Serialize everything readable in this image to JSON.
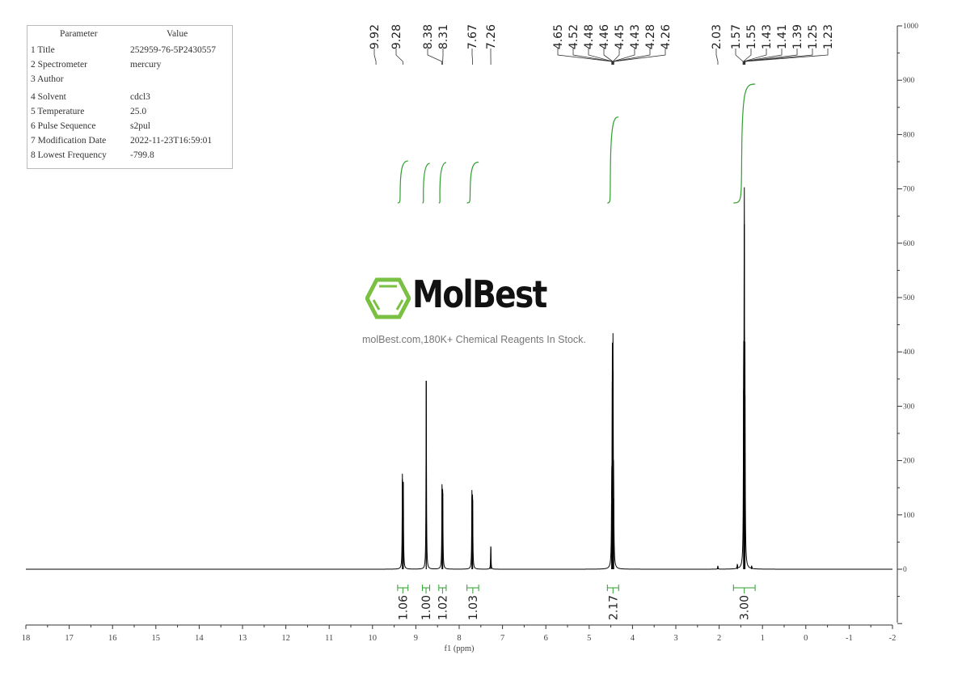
{
  "parameters": {
    "header": {
      "param": "Parameter",
      "value": "Value"
    },
    "rows": [
      {
        "k": "1 Title",
        "v": "252959-76-5P2430557"
      },
      {
        "k": "2 Spectrometer",
        "v": "mercury"
      },
      {
        "k": "3 Author",
        "v": ""
      },
      {
        "k": "4 Solvent",
        "v": "cdcl3"
      },
      {
        "k": "5 Temperature",
        "v": "25.0"
      },
      {
        "k": "6 Pulse Sequence",
        "v": "s2pul"
      },
      {
        "k": "7 Modification Date",
        "v": "2022-11-23T16:59:01"
      },
      {
        "k": "8 Lowest Frequency",
        "v": "-799.8"
      }
    ]
  },
  "watermark": {
    "brand": "MolBest",
    "tagline": "molBest.com,180K+ Chemical Reagents In Stock.",
    "color": "#7ac143"
  },
  "chart_data": {
    "type": "line",
    "xlabel": "f1 (ppm)",
    "xlim": [
      18,
      -2
    ],
    "ylim": [
      -100,
      1000
    ],
    "x_ticks": [
      "18",
      "17",
      "16",
      "15",
      "14",
      "13",
      "12",
      "11",
      "10",
      "9",
      "8",
      "7",
      "6",
      "5",
      "4",
      "3",
      "2",
      "1",
      "0",
      "-1",
      "-2"
    ],
    "y_ticks": [
      "0",
      "100",
      "200",
      "300",
      "400",
      "500",
      "600",
      "700",
      "800",
      "900",
      "1000"
    ],
    "peaks": [
      {
        "ppm": 9.31,
        "intensity": 165
      },
      {
        "ppm": 9.29,
        "intensity": 160
      },
      {
        "ppm": 8.76,
        "intensity": 347
      },
      {
        "ppm": 8.395,
        "intensity": 148
      },
      {
        "ppm": 8.38,
        "intensity": 140
      },
      {
        "ppm": 7.705,
        "intensity": 135
      },
      {
        "ppm": 7.69,
        "intensity": 128
      },
      {
        "ppm": 7.27,
        "intensity": 42
      },
      {
        "ppm": 4.48,
        "intensity": 120
      },
      {
        "ppm": 4.465,
        "intensity": 345
      },
      {
        "ppm": 4.45,
        "intensity": 365
      },
      {
        "ppm": 4.435,
        "intensity": 130
      },
      {
        "ppm": 2.03,
        "intensity": 6
      },
      {
        "ppm": 1.58,
        "intensity": 8
      },
      {
        "ppm": 1.435,
        "intensity": 330
      },
      {
        "ppm": 1.42,
        "intensity": 635
      },
      {
        "ppm": 1.405,
        "intensity": 320
      },
      {
        "ppm": 1.25,
        "intensity": 5
      }
    ],
    "peak_labels": [
      "9.92",
      "9.28",
      "8.38",
      "8.31",
      "7.67",
      "7.26",
      "4.65",
      "4.52",
      "4.48",
      "4.46",
      "4.45",
      "4.43",
      "4.28",
      "4.26",
      "2.03",
      "1.57",
      "1.55",
      "1.43",
      "1.41",
      "1.39",
      "1.25",
      "1.23"
    ],
    "integrals": [
      {
        "from": 9.42,
        "to": 9.18,
        "value": "1.06"
      },
      {
        "from": 8.85,
        "to": 8.68,
        "value": "1.00"
      },
      {
        "from": 8.47,
        "to": 8.3,
        "value": "1.02"
      },
      {
        "from": 7.82,
        "to": 7.55,
        "value": "1.03"
      },
      {
        "from": 4.58,
        "to": 4.32,
        "value": "2.17"
      },
      {
        "from": 1.67,
        "to": 1.17,
        "value": "3.00"
      }
    ],
    "line_color": "#000000",
    "integral_color": "#2e9e2e"
  }
}
